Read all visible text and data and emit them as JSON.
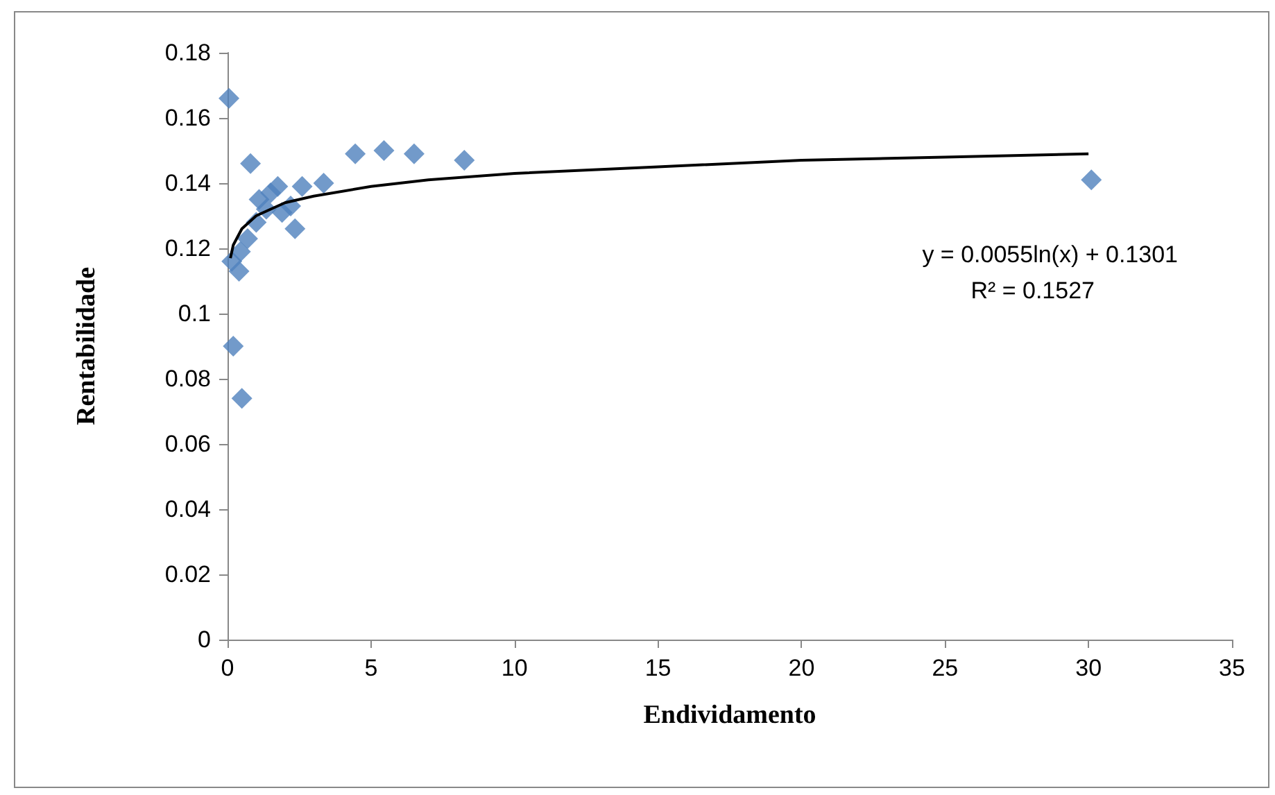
{
  "chart_data": {
    "type": "scatter",
    "xlabel": "Endividamento",
    "ylabel": "Rentabilidade",
    "xlim": [
      0,
      35
    ],
    "xticks": [
      0,
      5,
      10,
      15,
      20,
      25,
      30,
      35
    ],
    "ylim": [
      0,
      0.18
    ],
    "yticks": [
      0,
      0.02,
      0.04,
      0.06,
      0.08,
      0.1,
      0.12,
      0.14,
      0.16,
      0.18
    ],
    "grid": false,
    "marker": "diamond",
    "annotations": [
      "y = 0.0055ln(x) + 0.1301",
      "R² = 0.1527"
    ],
    "series": [
      {
        "color": "#4f81bd",
        "x": [
          0.05,
          0.2,
          0.5,
          0.8,
          0.15,
          0.4,
          0.45,
          0.7,
          1.0,
          1.1,
          1.35,
          1.5,
          1.75,
          1.9,
          2.2,
          2.35,
          2.6,
          3.35,
          4.45,
          5.45,
          6.5,
          8.25,
          30.1
        ],
        "values": [
          0.166,
          0.09,
          0.074,
          0.146,
          0.116,
          0.113,
          0.119,
          0.123,
          0.128,
          0.135,
          0.132,
          0.137,
          0.139,
          0.131,
          0.133,
          0.126,
          0.139,
          0.14,
          0.149,
          0.15,
          0.149,
          0.147,
          0.141
        ]
      },
      {
        "type": "line",
        "color": "#000000",
        "marker": "none",
        "line_style": "solid",
        "x": [
          0.1,
          0.2,
          0.5,
          1,
          2,
          3,
          5,
          7,
          10,
          15,
          20,
          25,
          30
        ],
        "values": [
          0.117,
          0.121,
          0.126,
          0.13,
          0.134,
          0.136,
          0.139,
          0.141,
          0.143,
          0.145,
          0.147,
          0.148,
          0.149
        ]
      }
    ]
  }
}
